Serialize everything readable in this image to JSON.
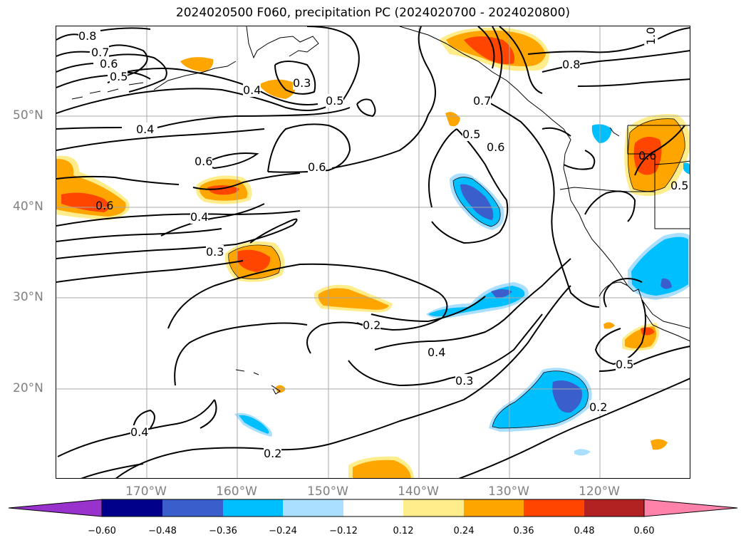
{
  "title": "2024020500 F060, precipitation PC (2024020700 - 2024020800)",
  "lat_labels": [
    "50°N",
    "40°N",
    "30°N",
    "20°N"
  ],
  "lon_labels": [
    "170°W",
    "160°W",
    "150°W",
    "140°W",
    "130°W",
    "120°W"
  ],
  "contour_labels": [
    "0.8",
    "0.7",
    "0.6",
    "0.5",
    "0.4",
    "0.3",
    "0.5",
    "0.4",
    "0.6",
    "0.6",
    "0.6",
    "0.4",
    "0.3",
    "0.2",
    "0.4",
    "0.3",
    "0.2",
    "0.5",
    "0.2",
    "0.4",
    "0.5",
    "0.6",
    "0.7",
    "0.8",
    "1.0",
    "0.6",
    "0.5"
  ],
  "colorbar": {
    "ticks": [
      "−0.60",
      "−0.48",
      "−0.36",
      "−0.24",
      "−0.12",
      "0.12",
      "0.24",
      "0.36",
      "0.48",
      "0.60"
    ],
    "colors": [
      "#9932cc",
      "#00008b",
      "#3a5fcd",
      "#00bfff",
      "#aadfff",
      "#ffffff",
      "#ffec8b",
      "#ffa500",
      "#ff4500",
      "#b22222",
      "#ff82ab"
    ]
  },
  "fill_colors": {
    "pos_light": "#ffec8b",
    "pos_mid": "#ffa500",
    "pos_strong": "#ff4500",
    "neg_light": "#aadfff",
    "neg_mid": "#00bfff",
    "neg_strong": "#3a5fcd"
  }
}
